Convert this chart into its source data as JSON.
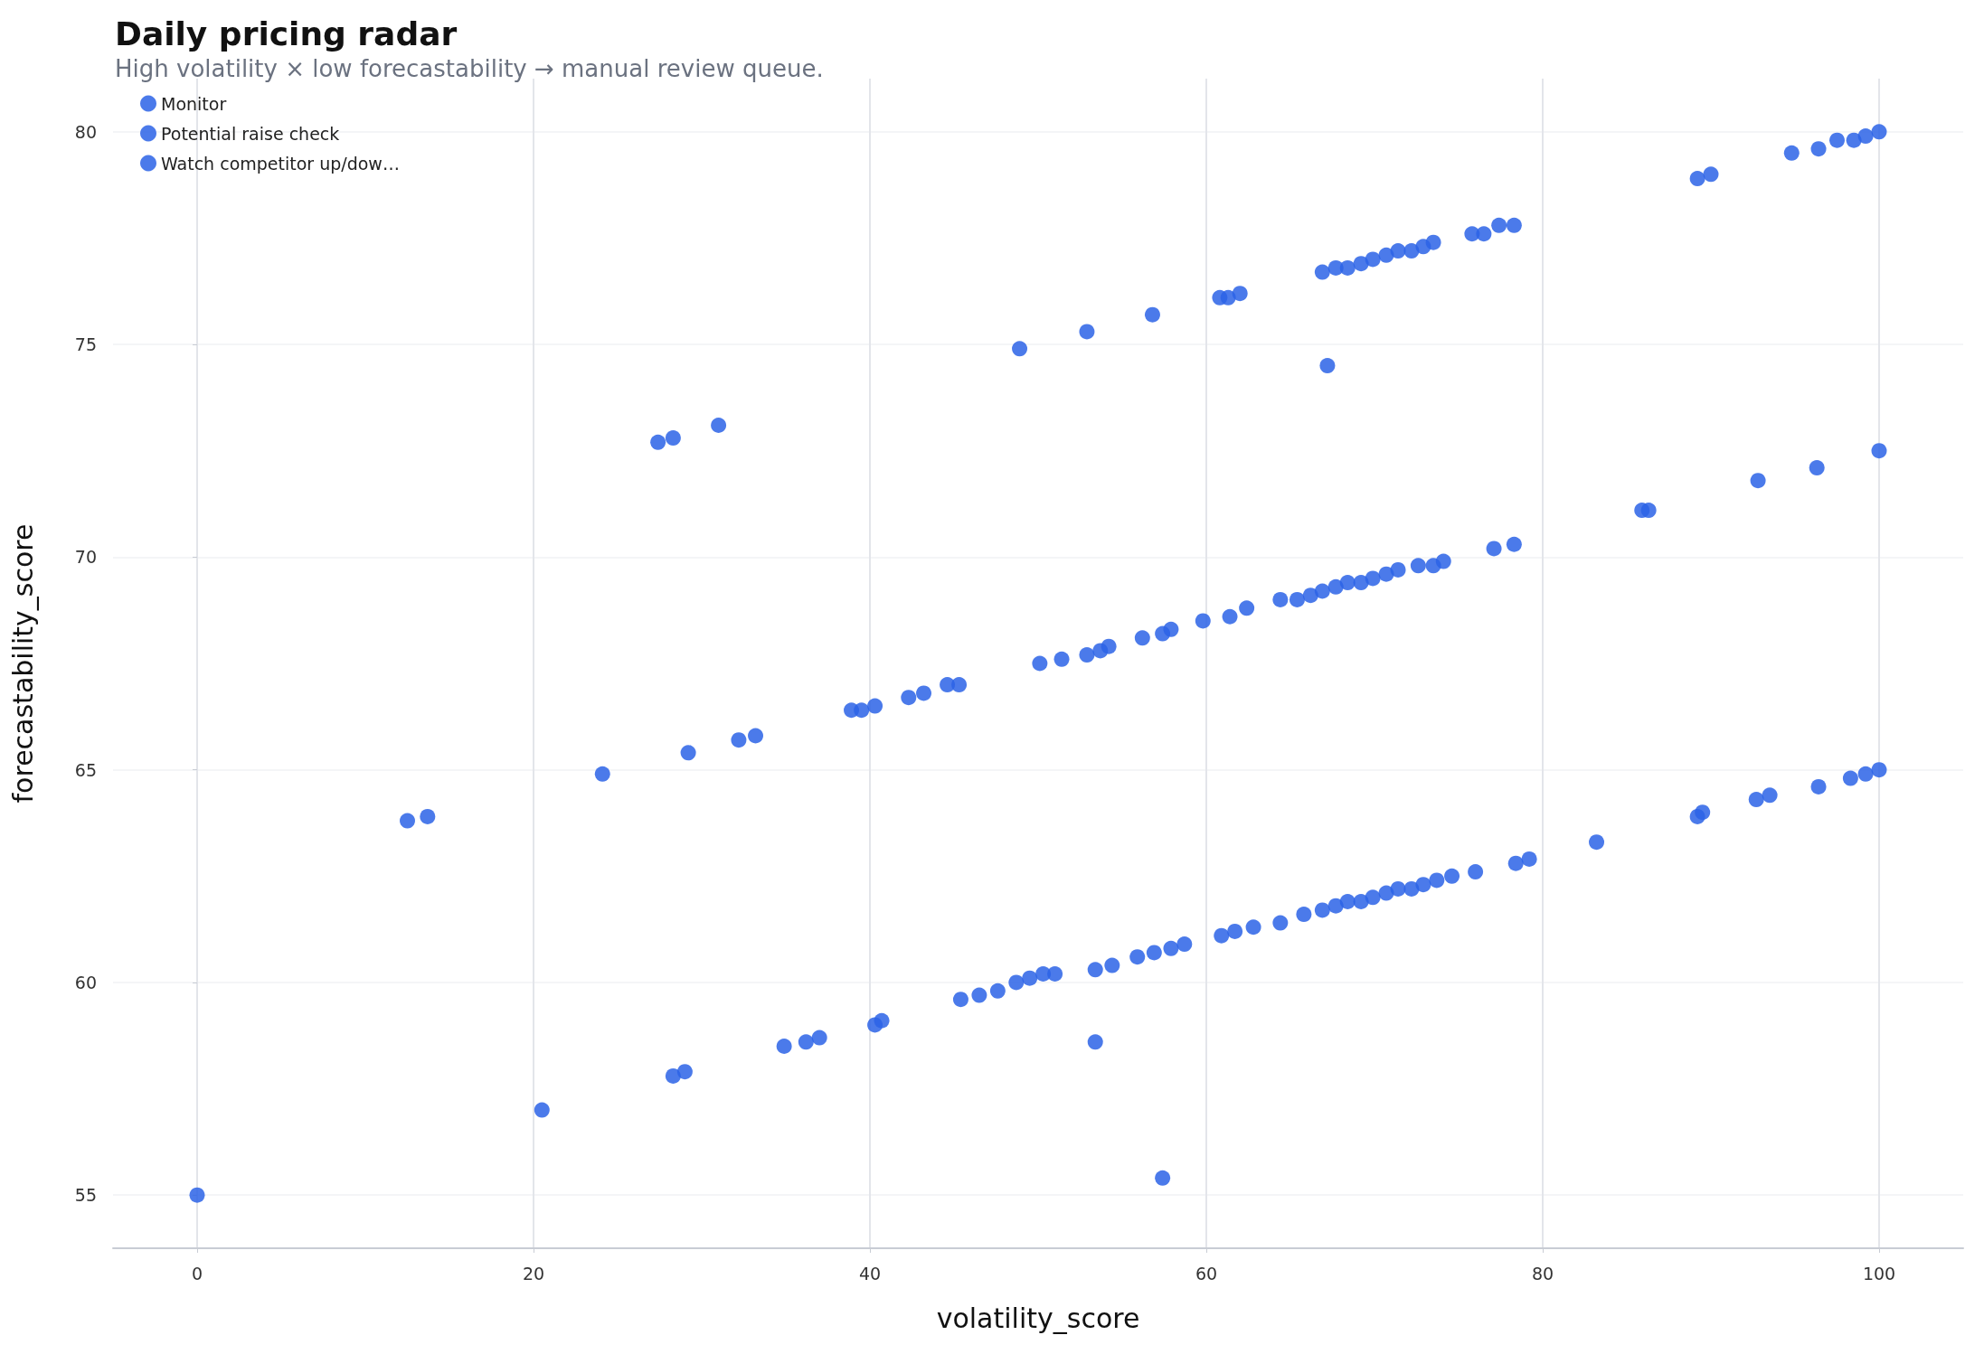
{
  "chart_data": {
    "type": "scatter",
    "title": "Daily pricing radar",
    "subtitle": "High volatility × low forecastability → manual review queue.",
    "xlabel": "volatility_score",
    "ylabel": "forecastability_score",
    "xlim": [
      -5,
      105
    ],
    "xticks": [
      0,
      20,
      40,
      60,
      80,
      100
    ],
    "ylim": [
      53.75,
      81.25
    ],
    "yticks": [
      55,
      60,
      65,
      70,
      75,
      80
    ],
    "grid": true,
    "legend": "top left",
    "marker": "circle",
    "series": [
      {
        "name": "Monitor",
        "color": "#2b63e6",
        "x": [
          0,
          20.5,
          28.3,
          29.0,
          34.9,
          36.2,
          37.0,
          40.3,
          40.7,
          45.4,
          46.5,
          47.6,
          48.7,
          49.5,
          50.3,
          51.0,
          53.4,
          53.4,
          54.4,
          55.9,
          56.9,
          57.9,
          58.7,
          60.9,
          61.7,
          62.8,
          64.4,
          65.8,
          66.9,
          67.7,
          68.4,
          69.2,
          69.9,
          70.7,
          71.4,
          72.2,
          72.9,
          73.7,
          74.6,
          76.0,
          78.4,
          79.2,
          83.2,
          89.2,
          89.5,
          92.7,
          93.5,
          96.4,
          98.3,
          99.2,
          100,
          57.4
        ],
        "values": [
          55,
          57.0,
          57.8,
          57.9,
          58.5,
          58.6,
          58.7,
          59.0,
          59.1,
          59.6,
          59.7,
          59.8,
          60.0,
          60.1,
          60.2,
          60.2,
          58.6,
          60.3,
          60.4,
          60.6,
          60.7,
          60.8,
          60.9,
          61.1,
          61.2,
          61.3,
          61.4,
          61.6,
          61.7,
          61.8,
          61.9,
          61.9,
          62.0,
          62.1,
          62.2,
          62.2,
          62.3,
          62.4,
          62.5,
          62.6,
          62.8,
          62.9,
          63.3,
          63.9,
          64.0,
          64.3,
          64.4,
          64.6,
          64.8,
          64.9,
          65,
          55.4
        ]
      },
      {
        "name": "Potential raise check",
        "color": "#2b63e6",
        "x": [
          12.5,
          13.7,
          24.1,
          29.2,
          32.2,
          33.2,
          38.9,
          39.5,
          40.3,
          42.3,
          43.2,
          44.6,
          45.3,
          50.1,
          51.4,
          52.9,
          53.7,
          54.2,
          56.2,
          57.4,
          57.9,
          59.8,
          61.4,
          62.4,
          64.4,
          65.4,
          66.2,
          66.9,
          67.7,
          68.4,
          69.2,
          69.9,
          70.7,
          71.4,
          72.6,
          73.5,
          74.1,
          77.1,
          78.3,
          85.9,
          86.3,
          92.8,
          96.3,
          100
        ],
        "values": [
          63.8,
          63.9,
          64.9,
          65.4,
          65.7,
          65.8,
          66.4,
          66.4,
          66.5,
          66.7,
          66.8,
          67.0,
          67.0,
          67.5,
          67.6,
          67.7,
          67.8,
          67.9,
          68.1,
          68.2,
          68.3,
          68.5,
          68.6,
          68.8,
          69.0,
          69.0,
          69.1,
          69.2,
          69.3,
          69.4,
          69.4,
          69.5,
          69.6,
          69.7,
          69.8,
          69.8,
          69.9,
          70.2,
          70.3,
          71.1,
          71.1,
          71.8,
          72.1,
          72.5
        ]
      },
      {
        "name": "Watch competitor up/dow…",
        "color": "#2b63e6",
        "x": [
          27.4,
          28.3,
          31.0,
          48.9,
          52.9,
          56.8,
          60.8,
          61.3,
          62.0,
          67.2,
          66.9,
          67.7,
          68.4,
          69.2,
          69.9,
          70.7,
          71.4,
          72.2,
          72.9,
          73.5,
          75.8,
          76.5,
          77.4,
          78.3,
          89.2,
          90.0,
          94.8,
          96.4,
          97.5,
          98.5,
          99.2,
          100
        ],
        "values": [
          72.7,
          72.8,
          73.1,
          74.9,
          75.3,
          75.7,
          76.1,
          76.1,
          76.2,
          74.5,
          76.7,
          76.8,
          76.8,
          76.9,
          77.0,
          77.1,
          77.2,
          77.2,
          77.3,
          77.4,
          77.6,
          77.6,
          77.8,
          77.8,
          78.9,
          79.0,
          79.5,
          79.6,
          79.8,
          79.8,
          79.9,
          80
        ]
      }
    ]
  }
}
